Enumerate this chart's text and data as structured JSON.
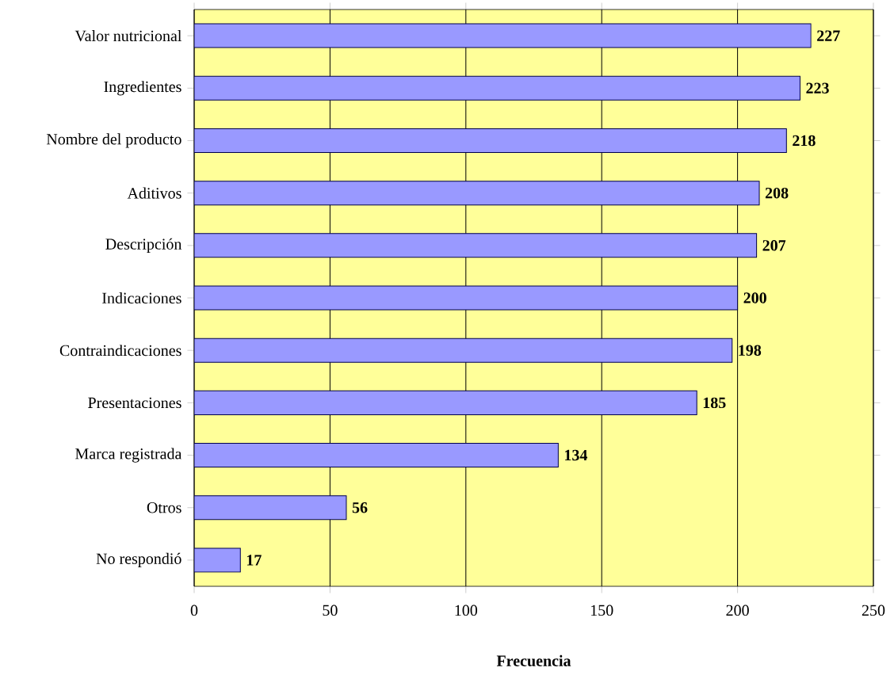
{
  "chart_data": {
    "type": "bar",
    "orientation": "horizontal",
    "xlabel": "Frecuencia",
    "categories": [
      "Valor nutricional",
      "Ingredientes",
      "Nombre del producto",
      "Aditivos",
      "Descripción",
      "Indicaciones",
      "Contraindicaciones",
      "Presentaciones",
      "Marca registrada",
      "Otros",
      "No respondió"
    ],
    "values": [
      227,
      223,
      218,
      208,
      207,
      200,
      198,
      185,
      134,
      56,
      17
    ],
    "color": "#9999ff",
    "xlim": [
      0,
      250
    ],
    "xticks": [
      0,
      50,
      100,
      150,
      200,
      250
    ],
    "grid": "x",
    "data_labels": true
  }
}
